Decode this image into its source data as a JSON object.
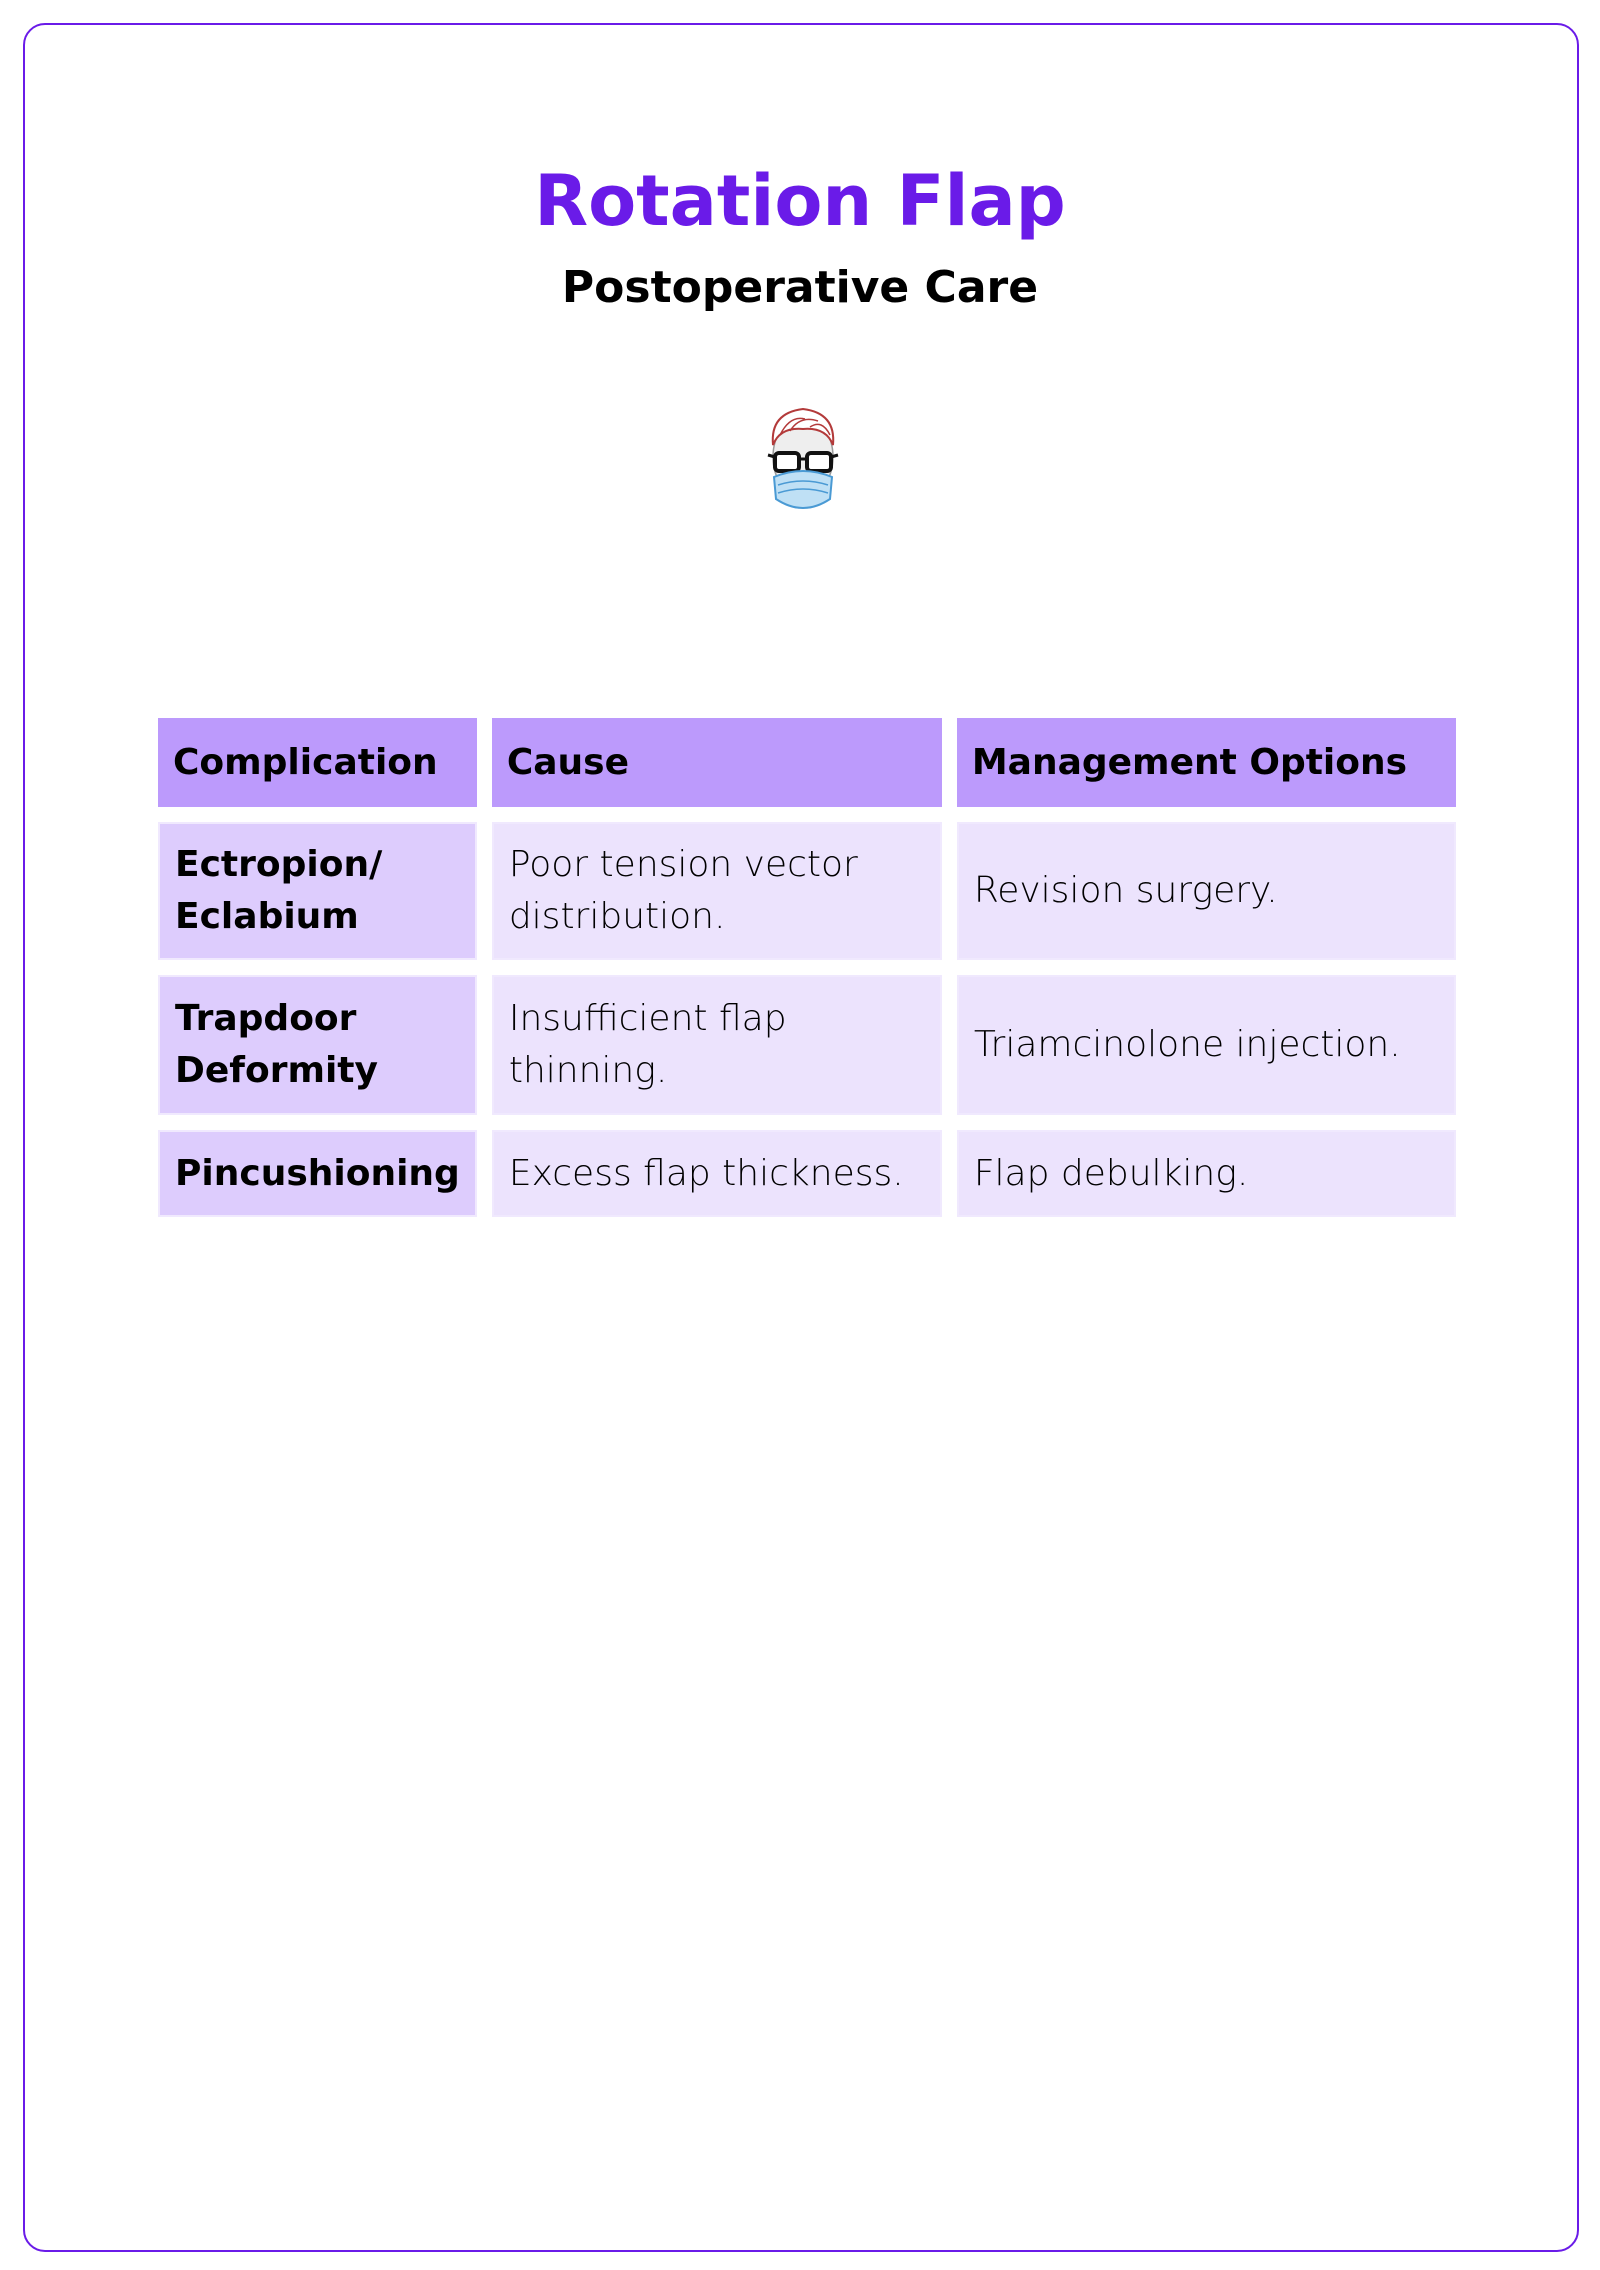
{
  "title": "Rotation Flap",
  "subtitle": "Postoperative Care",
  "colors": {
    "accent": "#6a1be8",
    "header_bg": "#bc9afc",
    "first_col_bg": "#ddccfd",
    "cell_bg": "#ece3fd"
  },
  "logo": {
    "icon": "masked-doctor-avatar-icon"
  },
  "table": {
    "headers": [
      "Complication",
      "Cause",
      "Management Options"
    ],
    "rows": [
      [
        "Ectropion/ Eclabium",
        "Poor tension vector distribution.",
        "Revision surgery."
      ],
      [
        "Trapdoor Deformity",
        "Insufficient flap thinning.",
        "Triamcinolone injection."
      ],
      [
        "Pincushioning",
        "Excess flap thickness.",
        "Flap debulking."
      ]
    ]
  }
}
